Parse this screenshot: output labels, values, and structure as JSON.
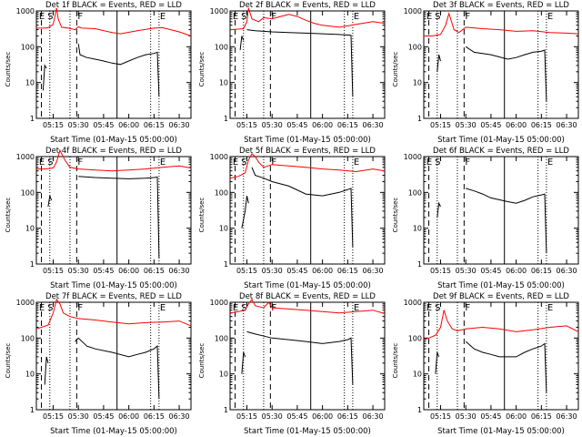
{
  "chart_data": [
    {
      "type": "line",
      "title": "Det 1f BLACK = Events, RED = LLD",
      "xlabel": "Start Time (01-May-15 05:00:00)",
      "ylabel": "Counts/sec",
      "yscale": "log",
      "ylim": [
        1,
        1000
      ],
      "xlim": [
        "05:05",
        "06:37"
      ],
      "xticks": [
        "05:15",
        "05:30",
        "05:45",
        "06:00",
        "06:15",
        "06:30"
      ],
      "yticks": [
        "1",
        "10",
        "100",
        "1000"
      ],
      "markers": [
        {
          "label": "E",
          "time": "05:06"
        },
        {
          "label": "S",
          "time": "05:11"
        },
        {
          "label": "F",
          "time": "05:29"
        },
        {
          "label": "E",
          "time": "06:18"
        }
      ],
      "series": [
        {
          "color": "#ff0000",
          "x": [
            "05:05",
            "05:10",
            "05:12",
            "05:15",
            "05:17",
            "05:18",
            "05:20",
            "05:24",
            "05:28",
            "05:30",
            "05:32",
            "05:40",
            "05:50",
            "05:55",
            "06:05",
            "06:15",
            "06:20",
            "06:30",
            "06:37"
          ],
          "y": [
            330,
            330,
            340,
            420,
            1200,
            600,
            350,
            330,
            300,
            360,
            330,
            320,
            250,
            230,
            280,
            330,
            340,
            260,
            200
          ]
        },
        {
          "color": "#000000",
          "x": [
            "05:09",
            "05:10",
            "05:11"
          ],
          "y": [
            6,
            30,
            25
          ]
        },
        {
          "color": "#000000",
          "x": [
            "05:30",
            "05:31",
            "05:35",
            "05:40",
            "05:45",
            "05:50",
            "05:55",
            "06:00",
            "06:05",
            "06:10",
            "06:15",
            "06:17",
            "06:18"
          ],
          "y": [
            120,
            60,
            50,
            45,
            40,
            35,
            32,
            40,
            50,
            60,
            65,
            70,
            4
          ]
        }
      ]
    },
    {
      "type": "line",
      "title": "Det 2f BLACK = Events, RED = LLD",
      "xlabel": "Start Time (01-May-15 05:00:00)",
      "ylabel": "Counts/sec",
      "yscale": "log",
      "ylim": [
        1,
        1000
      ],
      "xlim": [
        "05:05",
        "06:37"
      ],
      "xticks": [
        "05:15",
        "05:30",
        "05:45",
        "06:00",
        "06:15",
        "06:30"
      ],
      "yticks": [
        "1",
        "10",
        "100",
        "1000"
      ],
      "markers": [
        {
          "label": "E",
          "time": "05:06"
        },
        {
          "label": "S",
          "time": "05:11"
        },
        {
          "label": "F",
          "time": "05:29"
        },
        {
          "label": "E",
          "time": "06:18"
        }
      ],
      "series": [
        {
          "color": "#ff0000",
          "x": [
            "05:05",
            "05:10",
            "05:13",
            "05:15",
            "05:16",
            "05:18",
            "05:22",
            "05:25",
            "05:30",
            "05:35",
            "05:40",
            "05:45",
            "05:50",
            "05:55",
            "06:00",
            "06:10",
            "06:20",
            "06:30",
            "06:37"
          ],
          "y": [
            300,
            310,
            320,
            500,
            1200,
            600,
            500,
            650,
            600,
            700,
            800,
            700,
            550,
            450,
            400,
            350,
            420,
            500,
            450
          ]
        },
        {
          "color": "#000000",
          "x": [
            "05:11",
            "05:12",
            "05:13"
          ],
          "y": [
            80,
            200,
            150
          ]
        },
        {
          "color": "#000000",
          "x": [
            "05:15",
            "05:20",
            "05:30",
            "05:40",
            "05:50",
            "06:00",
            "06:10",
            "06:17",
            "06:18"
          ],
          "y": [
            300,
            280,
            260,
            250,
            240,
            230,
            220,
            210,
            4
          ]
        }
      ]
    },
    {
      "type": "line",
      "title": "Det 3f BLACK = Events, RED = LLD",
      "xlabel": "Start Time (01-May-15 05:00:00)",
      "ylabel": "Counts/sec",
      "yscale": "log",
      "ylim": [
        1,
        1000
      ],
      "xlim": [
        "05:05",
        "06:37"
      ],
      "xticks": [
        "05:15",
        "05:30",
        "05:45",
        "06:00",
        "06:15",
        "06:30"
      ],
      "yticks": [
        "1",
        "10",
        "100",
        "1000"
      ],
      "markers": [
        {
          "label": "E",
          "time": "05:06"
        },
        {
          "label": "S",
          "time": "05:11"
        },
        {
          "label": "F",
          "time": "05:29"
        },
        {
          "label": "E",
          "time": "06:18"
        }
      ],
      "series": [
        {
          "color": "#ff0000",
          "x": [
            "05:05",
            "05:10",
            "05:15",
            "05:18",
            "05:20",
            "05:23",
            "05:26",
            "05:30",
            "05:40",
            "05:50",
            "06:00",
            "06:10",
            "06:20",
            "06:30",
            "06:37"
          ],
          "y": [
            200,
            200,
            220,
            400,
            850,
            300,
            250,
            350,
            320,
            300,
            270,
            280,
            250,
            240,
            230
          ]
        },
        {
          "color": "#000000",
          "x": [
            "05:13",
            "05:14",
            "05:15"
          ],
          "y": [
            20,
            60,
            40
          ]
        },
        {
          "color": "#000000",
          "x": [
            "05:30",
            "05:35",
            "05:45",
            "05:55",
            "06:00",
            "06:05",
            "06:10",
            "06:15",
            "06:17",
            "06:18"
          ],
          "y": [
            100,
            70,
            60,
            45,
            50,
            60,
            70,
            75,
            80,
            3
          ]
        }
      ]
    },
    {
      "type": "line",
      "title": "Det 4f BLACK = Events, RED = LLD",
      "xlabel": "Start Time (01-May-15 05:00:00)",
      "ylabel": "Counts/sec",
      "yscale": "log",
      "ylim": [
        1,
        1000
      ],
      "xlim": [
        "05:05",
        "06:37"
      ],
      "xticks": [
        "05:15",
        "05:30",
        "05:45",
        "06:00",
        "06:15",
        "06:30"
      ],
      "yticks": [
        "1",
        "10",
        "100",
        "1000"
      ],
      "markers": [
        {
          "label": "E",
          "time": "05:06"
        },
        {
          "label": "S",
          "time": "05:11"
        },
        {
          "label": "F",
          "time": "05:29"
        },
        {
          "label": "E",
          "time": "06:18"
        }
      ],
      "series": [
        {
          "color": "#ff0000",
          "x": [
            "05:05",
            "05:10",
            "05:15",
            "05:17",
            "05:19",
            "05:22",
            "05:25",
            "05:30",
            "05:40",
            "05:50",
            "06:00",
            "06:10",
            "06:20",
            "06:30",
            "06:37"
          ],
          "y": [
            450,
            450,
            480,
            700,
            1500,
            800,
            500,
            450,
            420,
            400,
            420,
            450,
            500,
            550,
            480
          ]
        },
        {
          "color": "#000000",
          "x": [
            "05:12",
            "05:13",
            "05:14"
          ],
          "y": [
            40,
            80,
            60
          ]
        },
        {
          "color": "#000000",
          "x": [
            "05:30",
            "05:40",
            "05:50",
            "06:00",
            "06:10",
            "06:15",
            "06:17",
            "06:18"
          ],
          "y": [
            280,
            260,
            250,
            240,
            250,
            260,
            270,
            1.5
          ]
        }
      ]
    },
    {
      "type": "line",
      "title": "Det 5f BLACK = Events, RED = LLD",
      "xlabel": "Start Time (01-May-15 05:00:00)",
      "ylabel": "Counts/sec",
      "yscale": "log",
      "ylim": [
        1,
        1000
      ],
      "xlim": [
        "05:05",
        "06:37"
      ],
      "xticks": [
        "05:15",
        "05:30",
        "05:45",
        "06:00",
        "06:15",
        "06:30"
      ],
      "yticks": [
        "1",
        "10",
        "100",
        "1000"
      ],
      "markers": [
        {
          "label": "E",
          "time": "05:06"
        },
        {
          "label": "S",
          "time": "05:11"
        },
        {
          "label": "F",
          "time": "05:29"
        },
        {
          "label": "E",
          "time": "06:18"
        }
      ],
      "series": [
        {
          "color": "#ff0000",
          "x": [
            "05:05",
            "05:10",
            "05:14",
            "05:16",
            "05:18",
            "05:20",
            "05:22",
            "05:25",
            "05:30",
            "05:40",
            "05:50",
            "06:00",
            "06:10",
            "06:20",
            "06:30",
            "06:37"
          ],
          "y": [
            250,
            280,
            350,
            800,
            1200,
            1000,
            700,
            500,
            600,
            550,
            500,
            450,
            420,
            380,
            450,
            400
          ]
        },
        {
          "color": "#000000",
          "x": [
            "05:12",
            "05:14",
            "05:15",
            "05:16"
          ],
          "y": [
            10,
            30,
            80,
            50
          ]
        },
        {
          "color": "#000000",
          "x": [
            "05:18",
            "05:20",
            "05:25",
            "05:30",
            "05:40",
            "05:50",
            "06:00",
            "06:10",
            "06:15",
            "06:17",
            "06:18"
          ],
          "y": [
            500,
            300,
            250,
            200,
            150,
            90,
            80,
            100,
            120,
            130,
            3
          ]
        }
      ]
    },
    {
      "type": "line",
      "title": "Det 6f BLACK = Events, RED = LLD",
      "xlabel": "Start Time (01-May-15 05:00:00)",
      "ylabel": "Counts/sec",
      "yscale": "log",
      "ylim": [
        1,
        1000
      ],
      "xlim": [
        "05:05",
        "06:37"
      ],
      "xticks": [
        "05:15",
        "05:30",
        "05:45",
        "06:00",
        "06:15",
        "06:30"
      ],
      "yticks": [
        "1",
        "10",
        "100",
        "1000"
      ],
      "markers": [
        {
          "label": "E",
          "time": "05:06"
        },
        {
          "label": "S",
          "time": "05:11"
        },
        {
          "label": "F",
          "time": "05:29"
        },
        {
          "label": "E",
          "time": "06:18"
        }
      ],
      "series": [
        {
          "color": "#000000",
          "x": [
            "05:13",
            "05:14",
            "05:15"
          ],
          "y": [
            20,
            50,
            40
          ]
        },
        {
          "color": "#000000",
          "x": [
            "05:30",
            "05:35",
            "05:40",
            "05:45",
            "05:55",
            "06:00",
            "06:05",
            "06:10",
            "06:15",
            "06:17",
            "06:18"
          ],
          "y": [
            130,
            110,
            90,
            70,
            55,
            50,
            60,
            75,
            85,
            90,
            2
          ]
        }
      ]
    },
    {
      "type": "line",
      "title": "Det 7f BLACK = Events, RED = LLD",
      "xlabel": "Start Time (01-May-15 05:00:00)",
      "ylabel": "Counts/sec",
      "yscale": "log",
      "ylim": [
        1,
        1000
      ],
      "xlim": [
        "05:05",
        "06:37"
      ],
      "xticks": [
        "05:15",
        "05:30",
        "05:45",
        "06:00",
        "06:15",
        "06:30"
      ],
      "yticks": [
        "1",
        "10",
        "100",
        "1000"
      ],
      "markers": [
        {
          "label": "E",
          "time": "05:06"
        },
        {
          "label": "S",
          "time": "05:11"
        },
        {
          "label": "F",
          "time": "05:29"
        },
        {
          "label": "E",
          "time": "06:18"
        }
      ],
      "series": [
        {
          "color": "#ff0000",
          "x": [
            "05:05",
            "05:08",
            "05:12",
            "05:15",
            "05:17",
            "05:19",
            "05:21",
            "05:25",
            "05:30",
            "05:40",
            "05:50",
            "06:00",
            "06:10",
            "06:20",
            "06:30",
            "06:37"
          ],
          "y": [
            180,
            200,
            230,
            500,
            1200,
            900,
            500,
            400,
            350,
            320,
            280,
            250,
            270,
            280,
            300,
            220
          ]
        },
        {
          "color": "#000000",
          "x": [
            "05:10",
            "05:11",
            "05:12"
          ],
          "y": [
            5,
            30,
            20
          ]
        },
        {
          "color": "#000000",
          "x": [
            "05:28",
            "05:30",
            "05:35",
            "05:40",
            "05:50",
            "06:00",
            "06:05",
            "06:10",
            "06:15",
            "06:17",
            "06:18"
          ],
          "y": [
            80,
            100,
            60,
            50,
            40,
            30,
            35,
            40,
            50,
            60,
            2
          ]
        }
      ]
    },
    {
      "type": "line",
      "title": "Det 8f BLACK = Events, RED = LLD",
      "xlabel": "Start Time (01-May-15 05:00:00)",
      "ylabel": "Counts/sec",
      "yscale": "log",
      "ylim": [
        1,
        1000
      ],
      "xlim": [
        "05:05",
        "06:37"
      ],
      "xticks": [
        "05:15",
        "05:30",
        "05:45",
        "06:00",
        "06:15",
        "06:30"
      ],
      "yticks": [
        "1",
        "10",
        "100",
        "1000"
      ],
      "markers": [
        {
          "label": "E",
          "time": "05:06"
        },
        {
          "label": "S",
          "time": "05:11"
        },
        {
          "label": "F",
          "time": "05:29"
        },
        {
          "label": "E",
          "time": "06:18"
        }
      ],
      "series": [
        {
          "color": "#ff0000",
          "x": [
            "05:05",
            "05:10",
            "05:14",
            "05:16",
            "05:18",
            "05:20",
            "05:25",
            "05:28",
            "05:30",
            "05:40",
            "05:50",
            "06:00",
            "06:10",
            "06:20",
            "06:30",
            "06:37"
          ],
          "y": [
            500,
            550,
            600,
            900,
            1200,
            800,
            700,
            1000,
            700,
            650,
            600,
            550,
            500,
            550,
            600,
            480
          ]
        },
        {
          "color": "#000000",
          "x": [
            "05:12",
            "05:13",
            "05:14"
          ],
          "y": [
            10,
            40,
            30
          ]
        },
        {
          "color": "#000000",
          "x": [
            "05:15",
            "05:20",
            "05:30",
            "05:40",
            "05:50",
            "06:00",
            "06:10",
            "06:15",
            "06:17",
            "06:18"
          ],
          "y": [
            150,
            130,
            100,
            90,
            80,
            70,
            80,
            90,
            100,
            5
          ]
        }
      ]
    },
    {
      "type": "line",
      "title": "Det 9f BLACK = Events, RED = LLD",
      "xlabel": "Start Time (01-May-15 05:00:00)",
      "ylabel": "Counts/sec",
      "yscale": "log",
      "ylim": [
        1,
        1000
      ],
      "xlim": [
        "05:05",
        "06:37"
      ],
      "xticks": [
        "05:15",
        "05:30",
        "05:45",
        "06:00",
        "06:15",
        "06:30"
      ],
      "yticks": [
        "1",
        "10",
        "100",
        "1000"
      ],
      "markers": [
        {
          "label": "E",
          "time": "05:06"
        },
        {
          "label": "S",
          "time": "05:11"
        },
        {
          "label": "F",
          "time": "05:29"
        },
        {
          "label": "E",
          "time": "06:18"
        }
      ],
      "series": [
        {
          "color": "#ff0000",
          "x": [
            "05:05",
            "05:08",
            "05:12",
            "05:15",
            "05:17",
            "05:19",
            "05:22",
            "05:25",
            "05:30",
            "05:40",
            "05:50",
            "06:00",
            "06:10",
            "06:20",
            "06:30",
            "06:37"
          ],
          "y": [
            90,
            100,
            120,
            200,
            600,
            300,
            180,
            160,
            180,
            200,
            180,
            150,
            170,
            200,
            220,
            150
          ]
        },
        {
          "color": "#000000",
          "x": [
            "05:12",
            "05:13",
            "05:14"
          ],
          "y": [
            10,
            40,
            30
          ]
        },
        {
          "color": "#000000",
          "x": [
            "05:30",
            "05:35",
            "05:40",
            "05:45",
            "05:50",
            "06:00",
            "06:05",
            "06:10",
            "06:15",
            "06:17",
            "06:18"
          ],
          "y": [
            80,
            50,
            40,
            35,
            30,
            30,
            40,
            50,
            60,
            70,
            3
          ]
        }
      ]
    }
  ]
}
